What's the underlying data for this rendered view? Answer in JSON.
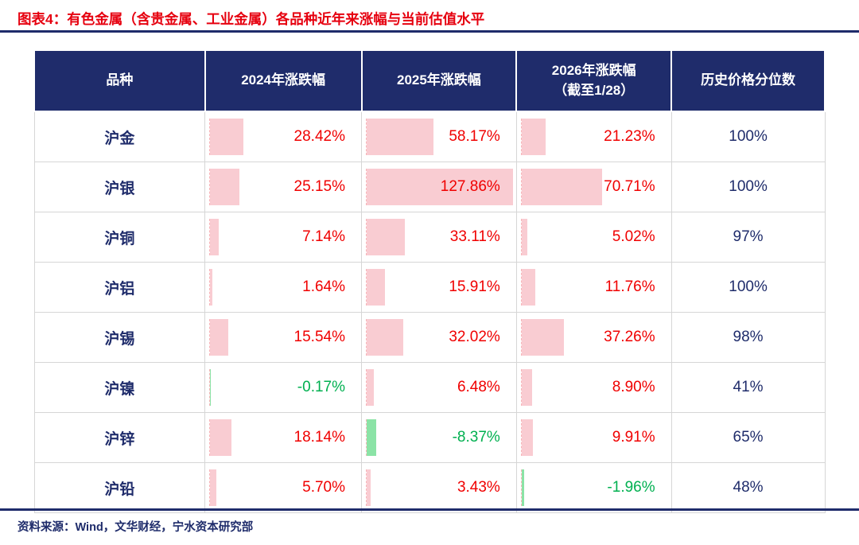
{
  "title": "图表4：有色金属（含贵金属、工业金属）各品种近年来涨幅与当前估值水平",
  "source": "资料来源：Wind，文华财经，宁水资本研究部",
  "colors": {
    "navy": "#1f2c6b",
    "title_red": "#e6000f",
    "positive": "#f00000",
    "negative": "#00b050",
    "positive_bar": "#f9ccd2",
    "negative_bar": "#8be3a6",
    "border": "#d6d6d6"
  },
  "chart_data": {
    "type": "table",
    "title": "有色金属（含贵金属、工业金属）各品种近年来涨幅与当前估值水平",
    "columns": [
      "品种",
      "2024年涨跌幅",
      "2025年涨跌幅",
      "2026年涨跌幅\n（截至1/28）",
      "历史价格分位数"
    ],
    "bar_scale_max": 127.86,
    "rows": [
      {
        "name": "沪金",
        "changes": [
          28.42,
          58.17,
          21.23
        ],
        "labels": [
          "28.42%",
          "58.17%",
          "21.23%"
        ],
        "percentile": "100%"
      },
      {
        "name": "沪银",
        "changes": [
          25.15,
          127.86,
          70.71
        ],
        "labels": [
          "25.15%",
          "127.86%",
          "70.71%"
        ],
        "percentile": "100%"
      },
      {
        "name": "沪铜",
        "changes": [
          7.14,
          33.11,
          5.02
        ],
        "labels": [
          "7.14%",
          "33.11%",
          "5.02%"
        ],
        "percentile": "97%"
      },
      {
        "name": "沪铝",
        "changes": [
          1.64,
          15.91,
          11.76
        ],
        "labels": [
          "1.64%",
          "15.91%",
          "11.76%"
        ],
        "percentile": "100%"
      },
      {
        "name": "沪锡",
        "changes": [
          15.54,
          32.02,
          37.26
        ],
        "labels": [
          "15.54%",
          "32.02%",
          "37.26%"
        ],
        "percentile": "98%"
      },
      {
        "name": "沪镍",
        "changes": [
          -0.17,
          6.48,
          8.9
        ],
        "labels": [
          "-0.17%",
          "6.48%",
          "8.90%"
        ],
        "percentile": "41%"
      },
      {
        "name": "沪锌",
        "changes": [
          18.14,
          -8.37,
          9.91
        ],
        "labels": [
          "18.14%",
          "-8.37%",
          "9.91%"
        ],
        "percentile": "65%"
      },
      {
        "name": "沪铅",
        "changes": [
          5.7,
          3.43,
          -1.96
        ],
        "labels": [
          "5.70%",
          "3.43%",
          "-1.96%"
        ],
        "percentile": "48%"
      }
    ]
  }
}
